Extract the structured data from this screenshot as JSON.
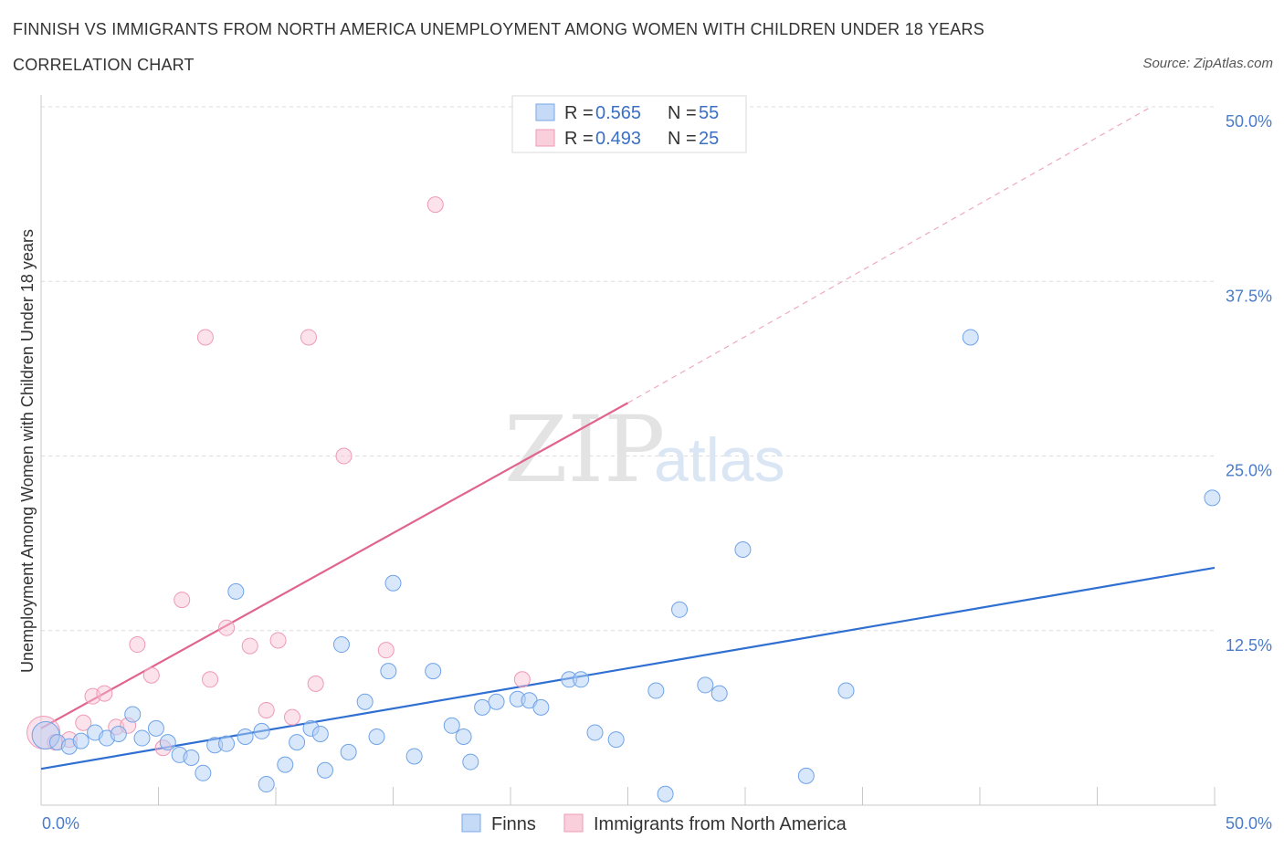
{
  "header": {
    "title": "FINNISH VS IMMIGRANTS FROM NORTH AMERICA UNEMPLOYMENT AMONG WOMEN WITH CHILDREN UNDER 18 YEARS",
    "subtitle": "CORRELATION CHART",
    "source": "Source: ZipAtlas.com"
  },
  "watermark": {
    "part1": "ZIP",
    "part2": "atlas"
  },
  "stats": [
    {
      "r_label": "R =",
      "r_value": "0.565",
      "n_label": "N =",
      "n_value": "55"
    },
    {
      "r_label": "R =",
      "r_value": "0.493",
      "n_label": "N =",
      "n_value": "25"
    }
  ],
  "chart_data": {
    "type": "scatter",
    "title": "FINNISH VS IMMIGRANTS FROM NORTH AMERICA UNEMPLOYMENT AMONG WOMEN WITH CHILDREN UNDER 18 YEARS",
    "ylabel": "Unemployment Among Women with Children Under 18 years",
    "xlabel": "",
    "xlim": [
      0,
      50
    ],
    "ylim": [
      0,
      50
    ],
    "x_tick_labels": [
      "0.0%",
      "50.0%"
    ],
    "y_tick_labels": [
      "50.0%",
      "37.5%",
      "25.0%",
      "12.5%"
    ],
    "y_ticks": [
      50,
      37.5,
      25,
      12.5
    ],
    "grid": true,
    "legend_position": "bottom",
    "colors": {
      "finns": "#6fa3e8",
      "immigrants": "#f2a0bb",
      "finns_line": "#2f6fd1",
      "immigrants_line": "#e0648c"
    },
    "series": [
      {
        "name": "Finns",
        "points": [
          [
            0.2,
            5.0
          ],
          [
            0.7,
            4.5
          ],
          [
            1.2,
            4.2
          ],
          [
            1.7,
            4.6
          ],
          [
            2.3,
            5.2
          ],
          [
            2.8,
            4.8
          ],
          [
            3.3,
            5.1
          ],
          [
            3.9,
            6.5
          ],
          [
            4.3,
            4.8
          ],
          [
            4.9,
            5.5
          ],
          [
            5.4,
            4.5
          ],
          [
            5.9,
            3.6
          ],
          [
            6.4,
            3.4
          ],
          [
            6.9,
            2.3
          ],
          [
            7.4,
            4.3
          ],
          [
            7.9,
            4.4
          ],
          [
            8.3,
            15.3
          ],
          [
            8.7,
            4.9
          ],
          [
            9.4,
            5.3
          ],
          [
            9.6,
            1.5
          ],
          [
            10.4,
            2.9
          ],
          [
            10.9,
            4.5
          ],
          [
            11.5,
            5.5
          ],
          [
            11.9,
            5.1
          ],
          [
            12.1,
            2.5
          ],
          [
            12.8,
            11.5
          ],
          [
            13.1,
            3.8
          ],
          [
            13.8,
            7.4
          ],
          [
            14.3,
            4.9
          ],
          [
            14.8,
            9.6
          ],
          [
            15.0,
            15.9
          ],
          [
            15.9,
            3.5
          ],
          [
            16.7,
            9.6
          ],
          [
            17.5,
            5.7
          ],
          [
            18.0,
            4.9
          ],
          [
            18.3,
            3.1
          ],
          [
            18.8,
            7.0
          ],
          [
            19.4,
            7.4
          ],
          [
            20.3,
            7.6
          ],
          [
            20.8,
            7.5
          ],
          [
            21.3,
            7.0
          ],
          [
            22.5,
            9.0
          ],
          [
            23.0,
            9.0
          ],
          [
            23.6,
            5.2
          ],
          [
            24.5,
            4.7
          ],
          [
            26.2,
            8.2
          ],
          [
            26.6,
            0.8
          ],
          [
            27.2,
            14.0
          ],
          [
            28.3,
            8.6
          ],
          [
            28.9,
            8.0
          ],
          [
            29.9,
            18.3
          ],
          [
            32.6,
            2.1
          ],
          [
            34.3,
            8.2
          ],
          [
            39.6,
            33.5
          ],
          [
            49.9,
            22.0
          ]
        ],
        "trend": {
          "x0": 0,
          "y0": 2.6,
          "x1": 50,
          "y1": 17.0
        }
      },
      {
        "name": "Immigrants from North America",
        "points": [
          [
            0.1,
            5.2
          ],
          [
            0.6,
            4.5
          ],
          [
            1.2,
            4.7
          ],
          [
            1.8,
            5.9
          ],
          [
            2.2,
            7.8
          ],
          [
            2.7,
            8.0
          ],
          [
            3.2,
            5.6
          ],
          [
            3.7,
            5.7
          ],
          [
            4.1,
            11.5
          ],
          [
            4.7,
            9.3
          ],
          [
            5.2,
            4.1
          ],
          [
            6.0,
            14.7
          ],
          [
            7.0,
            33.5
          ],
          [
            7.2,
            9.0
          ],
          [
            7.9,
            12.7
          ],
          [
            8.9,
            11.4
          ],
          [
            9.6,
            6.8
          ],
          [
            10.1,
            11.8
          ],
          [
            10.7,
            6.3
          ],
          [
            11.4,
            33.5
          ],
          [
            11.7,
            8.7
          ],
          [
            12.9,
            25.0
          ],
          [
            14.7,
            11.1
          ],
          [
            16.8,
            43.0
          ],
          [
            20.5,
            9.0
          ]
        ],
        "trend": {
          "x0": 0,
          "y0": 5.5,
          "x1": 25,
          "y1": 28.8
        },
        "trend_extension": {
          "x0": 25,
          "y0": 28.8,
          "x1": 47.3,
          "y1": 50.0
        }
      }
    ]
  }
}
